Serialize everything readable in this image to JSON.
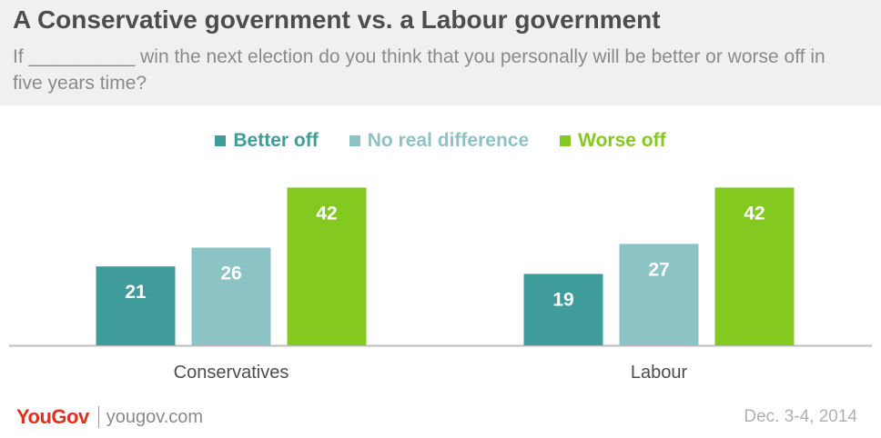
{
  "header": {
    "title": "A Conservative government vs. a Labour government",
    "subtitle": "If __________ win the next election do you think that you personally will be better or worse off in five years time?"
  },
  "chart_data": {
    "type": "bar",
    "categories": [
      "Conservatives",
      "Labour"
    ],
    "series": [
      {
        "name": "Better off",
        "values": [
          21,
          19
        ],
        "color": "#3f9c9a"
      },
      {
        "name": "No real difference",
        "values": [
          26,
          27
        ],
        "color": "#8cc3c4"
      },
      {
        "name": "Worse off",
        "values": [
          42,
          42
        ],
        "color": "#84c91f"
      }
    ],
    "ylim": [
      0,
      45
    ],
    "grid": false,
    "legend": "top-center",
    "data_labels": true
  },
  "footer": {
    "brand": "YouGov",
    "url": "yougov.com",
    "date": "Dec. 3-4, 2014"
  }
}
